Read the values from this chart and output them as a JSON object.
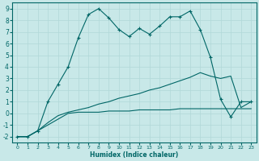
{
  "bg_color": "#c8e8e8",
  "grid_color": "#b0d8d8",
  "line_color": "#006666",
  "xlabel": "Humidex (Indice chaleur)",
  "xlim": [
    -0.5,
    23.5
  ],
  "ylim": [
    -2.5,
    9.5
  ],
  "xticks": [
    0,
    1,
    2,
    3,
    4,
    5,
    6,
    7,
    8,
    9,
    10,
    11,
    12,
    13,
    14,
    15,
    16,
    17,
    18,
    19,
    20,
    21,
    22,
    23
  ],
  "yticks": [
    -2,
    -1,
    0,
    1,
    2,
    3,
    4,
    5,
    6,
    7,
    8,
    9
  ],
  "line1_x": [
    0,
    1,
    2,
    3,
    4,
    5,
    6,
    7,
    8,
    9,
    10,
    11,
    12,
    13,
    14,
    15,
    16,
    17,
    18,
    19,
    20,
    21,
    22,
    23
  ],
  "line1_y": [
    -2,
    -2,
    -1.5,
    -1.0,
    -0.5,
    0.0,
    0.1,
    0.1,
    0.1,
    0.2,
    0.2,
    0.2,
    0.3,
    0.3,
    0.3,
    0.3,
    0.4,
    0.4,
    0.4,
    0.4,
    0.4,
    0.4,
    0.4,
    0.4
  ],
  "line2_x": [
    0,
    1,
    2,
    3,
    4,
    5,
    6,
    7,
    8,
    9,
    10,
    11,
    12,
    13,
    14,
    15,
    16,
    17,
    18,
    19,
    20,
    21,
    22,
    23
  ],
  "line2_y": [
    -2,
    -2,
    -1.5,
    -0.8,
    -0.2,
    0.1,
    0.3,
    0.5,
    0.8,
    1.0,
    1.3,
    1.5,
    1.7,
    2.0,
    2.2,
    2.5,
    2.8,
    3.1,
    3.5,
    3.2,
    3.0,
    3.2,
    0.5,
    1.0
  ],
  "line3_x": [
    0,
    1,
    2,
    3,
    4,
    5,
    6,
    7,
    8,
    9,
    10,
    11,
    12,
    13,
    14,
    15,
    16,
    17,
    18,
    19,
    20,
    21,
    22,
    23
  ],
  "line3_y": [
    -2,
    -2,
    -1.5,
    1.0,
    2.5,
    4.0,
    6.5,
    8.5,
    9.0,
    8.2,
    7.2,
    6.6,
    7.3,
    6.8,
    7.5,
    8.3,
    8.3,
    8.8,
    7.2,
    4.8,
    1.2,
    -0.3,
    1.0,
    1.0
  ]
}
